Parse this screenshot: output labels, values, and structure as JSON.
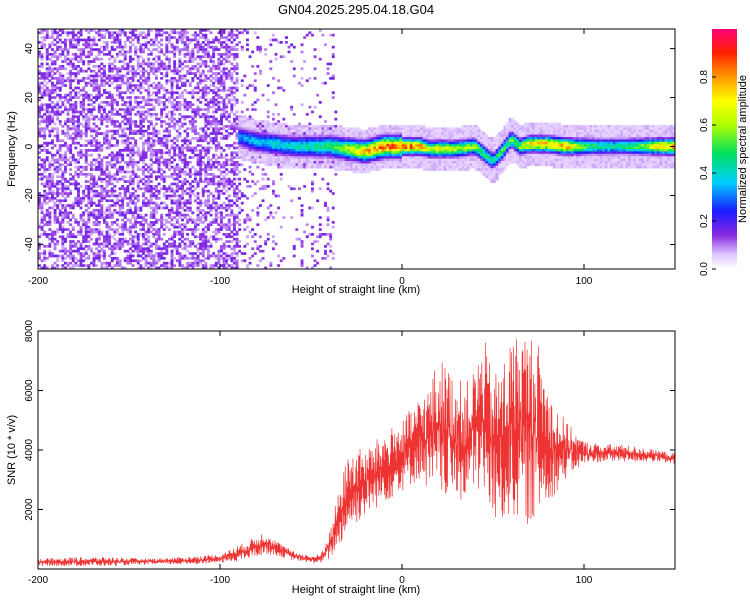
{
  "title": "GN04.2025.295.04.18.G04",
  "top_panel": {
    "xlabel": "Height of straight line (km)",
    "ylabel": "Frequency (Hz)",
    "xlim": [
      -200,
      150
    ],
    "ylim": [
      -50,
      48
    ],
    "xticks": [
      "-200",
      "-100",
      "0",
      "100"
    ],
    "yticks": [
      "40",
      "20",
      "0",
      "-20",
      "-40"
    ],
    "colorbar": {
      "label": "Normalized spectral amplitude",
      "range": [
        0,
        1
      ],
      "ticks": [
        "0.0",
        "0.2",
        "0.4",
        "0.6",
        "0.8"
      ]
    }
  },
  "bottom_panel": {
    "xlabel": "Height of straight line (km)",
    "ylabel": "SNR (10 * v/v)",
    "xlim": [
      -200,
      150
    ],
    "ylim": [
      0,
      8000
    ],
    "xticks": [
      "-200",
      "-100",
      "0",
      "100"
    ],
    "yticks": [
      "8000",
      "6000",
      "4000",
      "2000"
    ],
    "line_color": "#ee3333"
  },
  "chart_data": [
    {
      "type": "heatmap",
      "x_range": [
        -200,
        150
      ],
      "y_range": [
        -50,
        48
      ],
      "value_range": [
        0,
        1
      ],
      "ridge": {
        "x": [
          -90,
          -80,
          -70,
          -60,
          -50,
          -40,
          -30,
          -20,
          -10,
          0,
          10,
          15,
          20,
          30,
          40,
          45,
          50,
          55,
          60,
          65,
          70,
          80,
          90,
          100,
          110,
          120,
          130,
          140,
          150
        ],
        "center_freq": [
          4,
          2,
          1,
          0,
          0,
          0,
          -1,
          -2,
          0,
          0,
          0,
          -1,
          -1,
          -1,
          0,
          -3,
          -6,
          -2,
          3,
          0,
          1,
          1,
          0,
          0,
          0,
          0,
          0,
          0,
          0
        ],
        "peak_amplitude": [
          0.35,
          0.4,
          0.45,
          0.45,
          0.5,
          0.55,
          0.7,
          0.85,
          0.95,
          0.95,
          0.95,
          0.7,
          0.8,
          0.7,
          0.65,
          0.55,
          0.5,
          0.6,
          0.6,
          0.65,
          0.8,
          0.85,
          0.9,
          0.6,
          0.5,
          0.5,
          0.6,
          0.8,
          0.9
        ]
      },
      "noise_region_x": [
        -200,
        -35
      ]
    },
    {
      "type": "line",
      "series": [
        {
          "x": [
            -200,
            -180,
            -160,
            -140,
            -120,
            -100,
            -90,
            -80,
            -75,
            -70,
            -60,
            -50,
            -45,
            -40,
            -35,
            -30,
            -25,
            -20,
            -10,
            0,
            10,
            15,
            20,
            25,
            30,
            35,
            40,
            45,
            50,
            55,
            60,
            65,
            70,
            75,
            80,
            85,
            90,
            95,
            100,
            110,
            120,
            130,
            140,
            150
          ],
          "y_low": [
            100,
            100,
            100,
            150,
            150,
            200,
            250,
            400,
            500,
            450,
            300,
            200,
            200,
            300,
            700,
            1200,
            1500,
            1800,
            2200,
            2600,
            3000,
            2600,
            2200,
            2400,
            2200,
            2300,
            2600,
            2400,
            1600,
            1400,
            1800,
            1500,
            1500,
            1700,
            2200,
            2600,
            3000,
            3300,
            3500,
            3600,
            3600,
            3600,
            3600,
            3500
          ],
          "y_high": [
            350,
            400,
            400,
            350,
            400,
            500,
            800,
            1100,
            1300,
            1000,
            600,
            450,
            500,
            1200,
            2600,
            3800,
            4100,
            4000,
            4600,
            5000,
            5800,
            6200,
            7200,
            6800,
            6500,
            6200,
            6800,
            7800,
            6500,
            7000,
            7800,
            8000,
            8000,
            7600,
            6200,
            5500,
            5000,
            4600,
            4300,
            4200,
            4200,
            4100,
            4000,
            3900
          ]
        }
      ],
      "xlabel": "Height of straight line (km)",
      "ylabel": "SNR (10 * v/v)",
      "xlim": [
        -200,
        150
      ],
      "ylim": [
        0,
        8000
      ]
    }
  ]
}
